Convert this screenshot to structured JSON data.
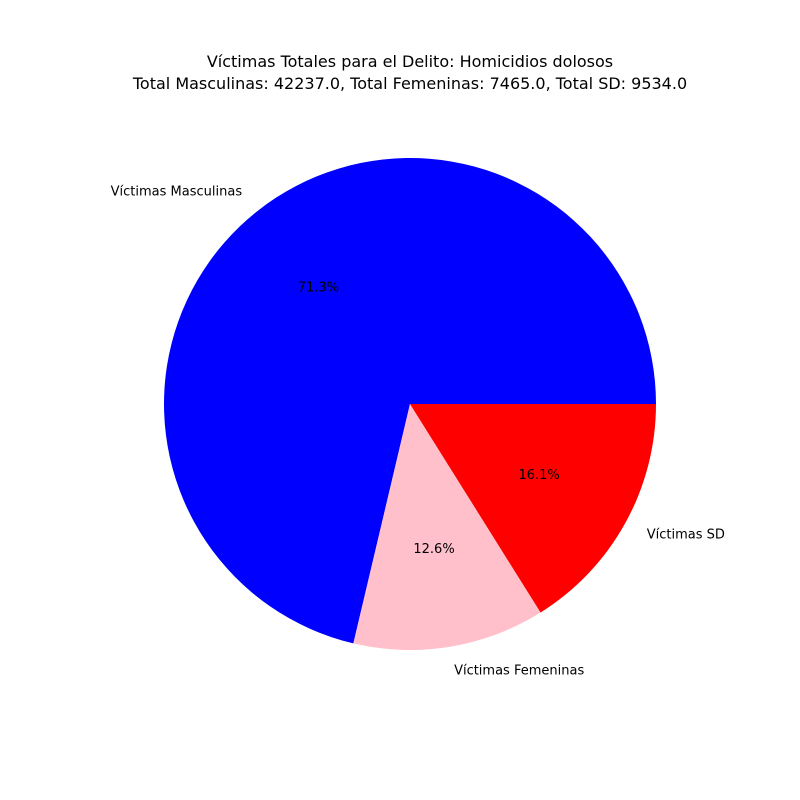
{
  "chart_data": {
    "type": "pie",
    "title": "Víctimas Totales para el Delito: Homicidios dolosos",
    "subtitle": "Total Masculinas: 42237.0, Total Femeninas: 7465.0, Total SD: 9534.0",
    "categories": [
      "Víctimas Masculinas",
      "Víctimas Femeninas",
      "Víctimas SD"
    ],
    "values": [
      42237.0,
      7465.0,
      9534.0
    ],
    "percent_labels": [
      "71.3%",
      "12.6%",
      "16.1%"
    ],
    "colors": [
      "#0000ff",
      "#ffc0cb",
      "#ff0000"
    ],
    "start_angle_deg": 0,
    "direction": "counterclockwise",
    "legend": "none"
  }
}
